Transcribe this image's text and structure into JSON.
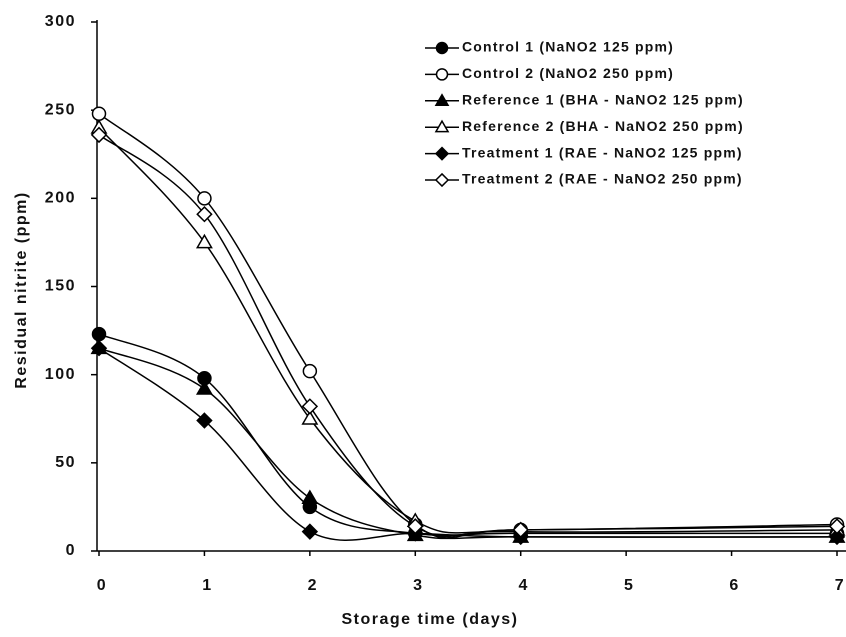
{
  "chart_data": {
    "type": "line",
    "x_label": "Storage time (days)",
    "y_label": "Residual nitrite (ppm)",
    "x": [
      0,
      1,
      2,
      3,
      4,
      7
    ],
    "xlim": [
      0,
      7
    ],
    "xticks": [
      0,
      1,
      2,
      3,
      4,
      5,
      6,
      7
    ],
    "ylim": [
      0,
      300
    ],
    "yticks": [
      0,
      50,
      100,
      150,
      200,
      250,
      300
    ],
    "smooth": true,
    "legend": "upper right",
    "series": [
      {
        "name": "Control 1 (NaNO2 125 ppm)",
        "color": "#000000",
        "marker": "circle",
        "open": false,
        "values": [
          123,
          98,
          25,
          10,
          10,
          10
        ]
      },
      {
        "name": "Control 2 (NaNO2 250 ppm)",
        "color": "#000000",
        "marker": "circle",
        "open": true,
        "values": [
          248,
          200,
          102,
          15,
          12,
          15
        ]
      },
      {
        "name": "Reference 1 (BHA - NaNO2 125 ppm)",
        "color": "#000000",
        "marker": "triangle",
        "open": false,
        "values": [
          115,
          92,
          30,
          9,
          8,
          8
        ]
      },
      {
        "name": "Reference 2 (BHA - NaNO2 250 ppm)",
        "color": "#000000",
        "marker": "triangle",
        "open": true,
        "values": [
          240,
          175,
          75,
          17,
          11,
          12
        ]
      },
      {
        "name": "Treatment 1 (RAE - NaNO2 125 ppm)",
        "color": "#000000",
        "marker": "diamond",
        "open": false,
        "values": [
          115,
          74,
          11,
          10,
          8,
          8
        ]
      },
      {
        "name": "Treatment 2 (RAE - NaNO2 250 ppm)",
        "color": "#000000",
        "marker": "diamond",
        "open": true,
        "values": [
          236,
          191,
          82,
          14,
          12,
          14
        ]
      }
    ]
  }
}
